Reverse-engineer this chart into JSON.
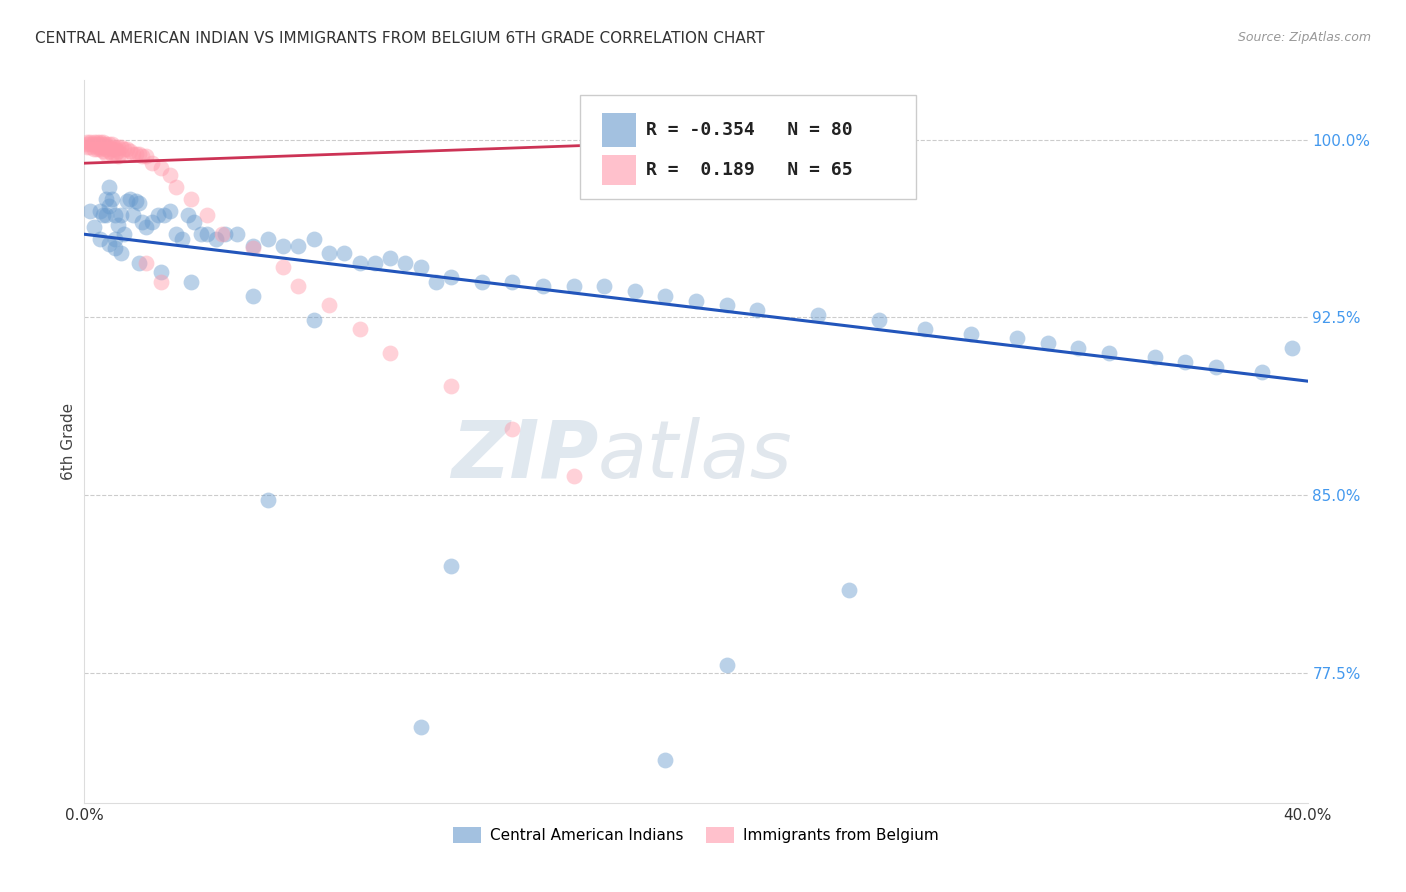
{
  "title": "CENTRAL AMERICAN INDIAN VS IMMIGRANTS FROM BELGIUM 6TH GRADE CORRELATION CHART",
  "source": "Source: ZipAtlas.com",
  "ylabel": "6th Grade",
  "xmin": 0.0,
  "xmax": 0.4,
  "ymin": 0.72,
  "ymax": 1.025,
  "ytick_positions": [
    0.725,
    0.75,
    0.775,
    0.8,
    0.825,
    0.85,
    0.875,
    0.9,
    0.925,
    0.95,
    0.975,
    1.0
  ],
  "ytick_labels": [
    "",
    "",
    "77.5%",
    "",
    "",
    "85.0%",
    "",
    "",
    "92.5%",
    "",
    "",
    "100.0%"
  ],
  "grid_lines": [
    0.775,
    0.85,
    0.925,
    1.0
  ],
  "legend_blue_r": "-0.354",
  "legend_blue_n": "80",
  "legend_pink_r": "0.189",
  "legend_pink_n": "65",
  "legend_blue_label": "Central American Indians",
  "legend_pink_label": "Immigrants from Belgium",
  "blue_color": "#6699CC",
  "pink_color": "#FF99AA",
  "blue_line_color": "#2255BB",
  "pink_line_color": "#CC3355",
  "watermark_zip": "ZIP",
  "watermark_atlas": "atlas",
  "blue_line_x0": 0.0,
  "blue_line_y0": 0.96,
  "blue_line_x1": 0.4,
  "blue_line_y1": 0.898,
  "pink_line_x0": 0.0,
  "pink_line_y0": 0.99,
  "pink_line_x1": 0.175,
  "pink_line_y1": 0.998,
  "blue_scatter_x": [
    0.002,
    0.003,
    0.005,
    0.006,
    0.007,
    0.007,
    0.008,
    0.008,
    0.009,
    0.01,
    0.01,
    0.011,
    0.012,
    0.013,
    0.014,
    0.015,
    0.016,
    0.017,
    0.018,
    0.019,
    0.02,
    0.022,
    0.024,
    0.026,
    0.028,
    0.03,
    0.032,
    0.034,
    0.036,
    0.038,
    0.04,
    0.043,
    0.046,
    0.05,
    0.055,
    0.06,
    0.065,
    0.07,
    0.075,
    0.08,
    0.085,
    0.09,
    0.095,
    0.1,
    0.105,
    0.11,
    0.115,
    0.12,
    0.13,
    0.14,
    0.15,
    0.16,
    0.17,
    0.18,
    0.19,
    0.2,
    0.21,
    0.22,
    0.24,
    0.26,
    0.275,
    0.29,
    0.305,
    0.315,
    0.325,
    0.335,
    0.35,
    0.36,
    0.37,
    0.385,
    0.005,
    0.008,
    0.01,
    0.012,
    0.018,
    0.025,
    0.035,
    0.055,
    0.075,
    0.395
  ],
  "blue_scatter_y": [
    0.97,
    0.963,
    0.97,
    0.968,
    0.975,
    0.968,
    0.972,
    0.98,
    0.975,
    0.968,
    0.958,
    0.964,
    0.968,
    0.96,
    0.974,
    0.975,
    0.968,
    0.974,
    0.973,
    0.965,
    0.963,
    0.965,
    0.968,
    0.968,
    0.97,
    0.96,
    0.958,
    0.968,
    0.965,
    0.96,
    0.96,
    0.958,
    0.96,
    0.96,
    0.955,
    0.958,
    0.955,
    0.955,
    0.958,
    0.952,
    0.952,
    0.948,
    0.948,
    0.95,
    0.948,
    0.946,
    0.94,
    0.942,
    0.94,
    0.94,
    0.938,
    0.938,
    0.938,
    0.936,
    0.934,
    0.932,
    0.93,
    0.928,
    0.926,
    0.924,
    0.92,
    0.918,
    0.916,
    0.914,
    0.912,
    0.91,
    0.908,
    0.906,
    0.904,
    0.902,
    0.958,
    0.956,
    0.954,
    0.952,
    0.948,
    0.944,
    0.94,
    0.934,
    0.924,
    0.912
  ],
  "blue_scatter_y_outliers": [
    0.848,
    0.82,
    0.81,
    0.778,
    0.752,
    0.738
  ],
  "blue_scatter_x_outliers": [
    0.06,
    0.12,
    0.25,
    0.21,
    0.11,
    0.19
  ],
  "pink_scatter_x": [
    0.001,
    0.001,
    0.001,
    0.002,
    0.002,
    0.002,
    0.003,
    0.003,
    0.003,
    0.004,
    0.004,
    0.004,
    0.004,
    0.005,
    0.005,
    0.005,
    0.005,
    0.006,
    0.006,
    0.006,
    0.006,
    0.007,
    0.007,
    0.007,
    0.007,
    0.008,
    0.008,
    0.008,
    0.009,
    0.009,
    0.009,
    0.01,
    0.01,
    0.01,
    0.011,
    0.011,
    0.011,
    0.012,
    0.012,
    0.013,
    0.014,
    0.015,
    0.016,
    0.017,
    0.018,
    0.019,
    0.02,
    0.022,
    0.025,
    0.028,
    0.03,
    0.035,
    0.04,
    0.045,
    0.055,
    0.065,
    0.07,
    0.08,
    0.09,
    0.1,
    0.12,
    0.14,
    0.16,
    0.02,
    0.025
  ],
  "pink_scatter_y": [
    0.999,
    0.998,
    0.997,
    0.999,
    0.998,
    0.997,
    0.999,
    0.998,
    0.996,
    0.999,
    0.998,
    0.997,
    0.996,
    0.999,
    0.998,
    0.997,
    0.996,
    0.999,
    0.998,
    0.997,
    0.995,
    0.998,
    0.997,
    0.996,
    0.994,
    0.998,
    0.997,
    0.995,
    0.998,
    0.996,
    0.994,
    0.997,
    0.996,
    0.994,
    0.997,
    0.995,
    0.993,
    0.997,
    0.994,
    0.996,
    0.996,
    0.995,
    0.994,
    0.994,
    0.994,
    0.993,
    0.993,
    0.99,
    0.988,
    0.985,
    0.98,
    0.975,
    0.968,
    0.96,
    0.954,
    0.946,
    0.938,
    0.93,
    0.92,
    0.91,
    0.896,
    0.878,
    0.858,
    0.948,
    0.94
  ]
}
